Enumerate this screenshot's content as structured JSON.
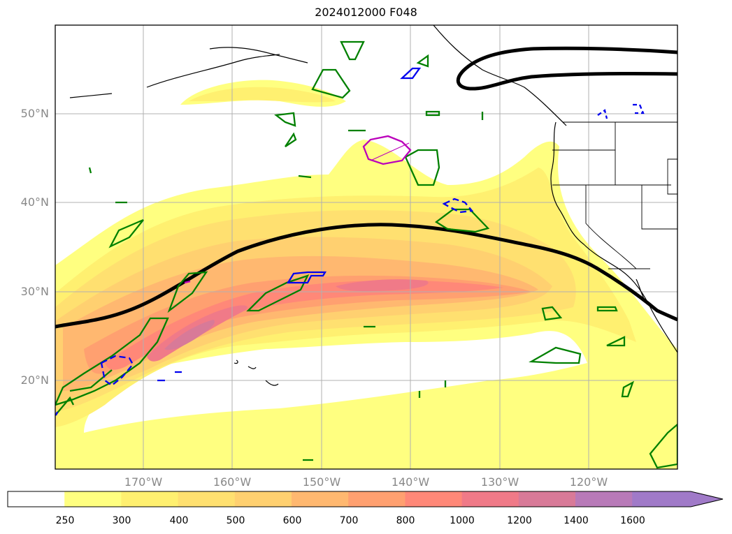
{
  "title": "2024012000 F048",
  "latitude_labels": [
    "50°N",
    "40°N",
    "30°N",
    "20°N"
  ],
  "longitude_labels": [
    "170°W",
    "160°W",
    "150°W",
    "140°W",
    "130°W",
    "120°W"
  ],
  "colorbar": {
    "ticks": [
      "250",
      "300",
      "400",
      "500",
      "600",
      "700",
      "800",
      "1000",
      "1200",
      "1400",
      "1600"
    ],
    "colors": [
      "#ffffff",
      "#ffff80",
      "#fff070",
      "#ffe070",
      "#ffd070",
      "#ffb870",
      "#ffa070",
      "#ff8878",
      "#f07a88",
      "#d87a98",
      "#b87ab8",
      "#a07ac8"
    ],
    "extend": "max"
  },
  "colors": {
    "jet_line": "#000000",
    "green_contour": "#008000",
    "blue_contour": "#0000ee",
    "magenta_contour": "#bb00bb",
    "grid": "#b0b0b0",
    "coast": "#000000"
  }
}
